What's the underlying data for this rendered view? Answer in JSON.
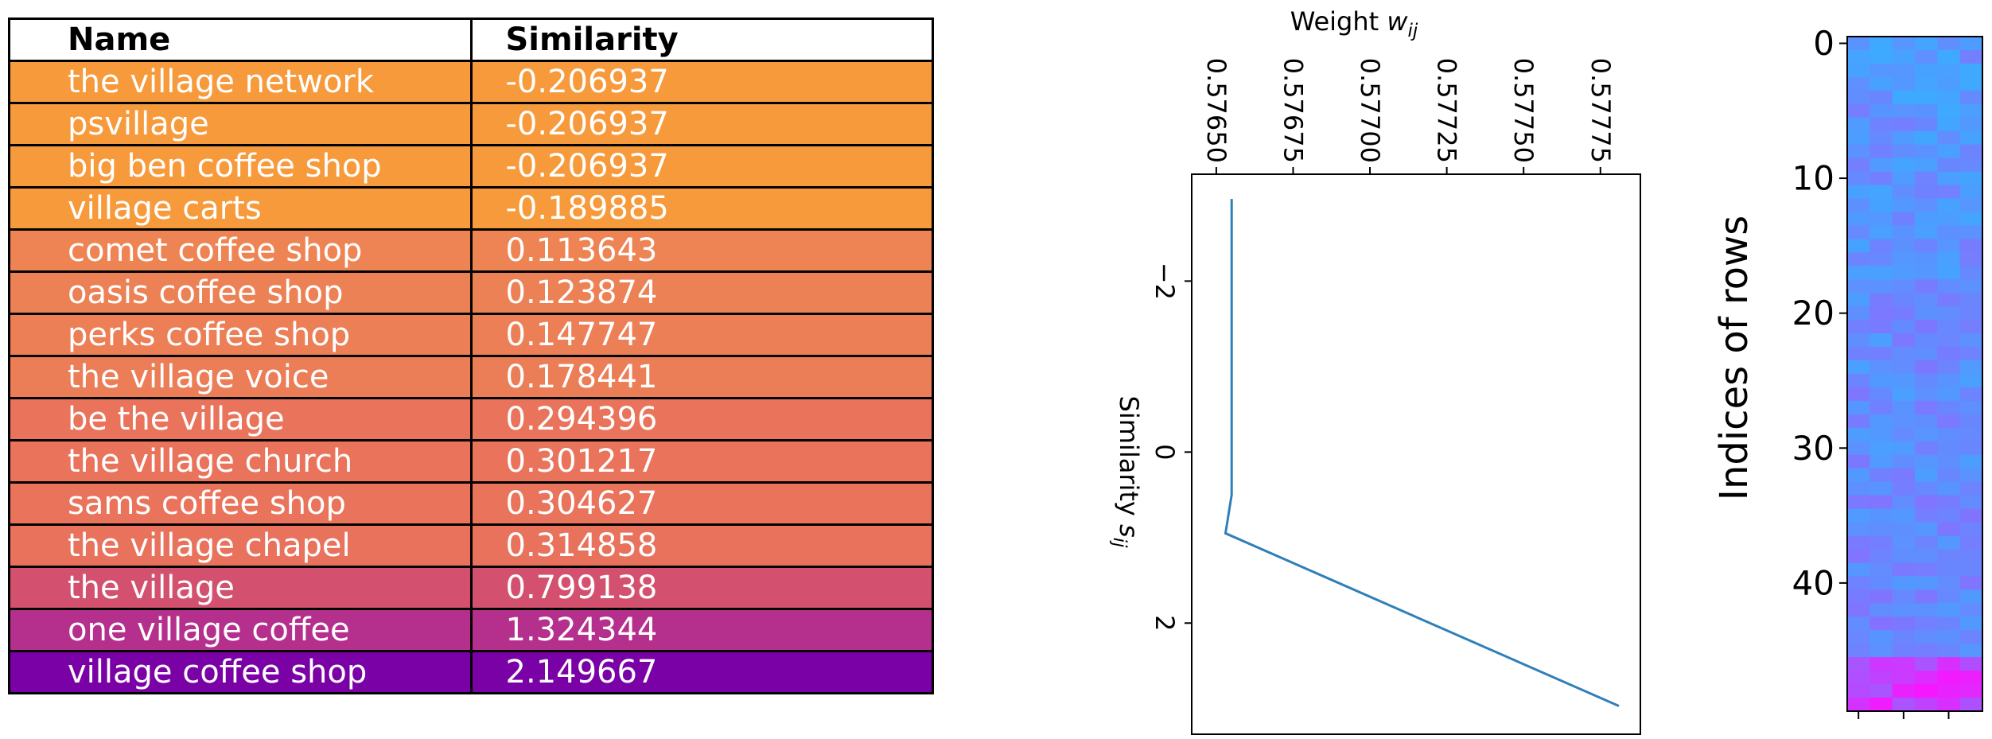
{
  "table": {
    "headers": [
      "Name",
      "Similarity"
    ],
    "rows": [
      {
        "name": "the village network",
        "similarity": "-0.206937",
        "color": "#f79a3b"
      },
      {
        "name": "psvillage",
        "similarity": "-0.206937",
        "color": "#f79a3b"
      },
      {
        "name": "big ben coffee shop",
        "similarity": "-0.206937",
        "color": "#f79a3b"
      },
      {
        "name": "village carts",
        "similarity": "-0.189885",
        "color": "#f79a3b"
      },
      {
        "name": "comet coffee shop",
        "similarity": "0.113643",
        "color": "#ee8454"
      },
      {
        "name": "oasis coffee shop",
        "similarity": "0.123874",
        "color": "#ec8155"
      },
      {
        "name": "perks coffee shop",
        "similarity": "0.147747",
        "color": "#ec7f56"
      },
      {
        "name": "the village voice",
        "similarity": "0.178441",
        "color": "#eb7d57"
      },
      {
        "name": "be the village",
        "similarity": "0.294396",
        "color": "#e9745b"
      },
      {
        "name": "the village church",
        "similarity": "0.301217",
        "color": "#e9735b"
      },
      {
        "name": "sams coffee shop",
        "similarity": "0.304627",
        "color": "#e9735b"
      },
      {
        "name": "the village chapel",
        "similarity": "0.314858",
        "color": "#e8725c"
      },
      {
        "name": "the village",
        "similarity": "0.799138",
        "color": "#d3516f"
      },
      {
        "name": "one village coffee",
        "similarity": "1.324344",
        "color": "#b52f8d"
      },
      {
        "name": "village coffee shop",
        "similarity": "2.149667",
        "color": "#7a01a6"
      }
    ]
  },
  "chart_data": [
    {
      "type": "line",
      "xlabel": "Weight w_ij",
      "ylabel": "Similarity s_ij",
      "xlim": [
        0.57642,
        0.57788
      ],
      "ylim": [
        -3.25,
        3.3
      ],
      "x_ticks": [
        "0.57650",
        "0.57675",
        "0.57700",
        "0.57725",
        "0.57750",
        "0.57775"
      ],
      "y_ticks": [
        "−2",
        "0",
        "2"
      ],
      "series": [
        {
          "color": "#2f7fb8",
          "points": [
            {
              "x": 0.57655,
              "y": -2.96
            },
            {
              "x": 0.57655,
              "y": 0.5
            },
            {
              "x": 0.57653,
              "y": 0.95
            },
            {
              "x": 0.57781,
              "y": 2.97
            }
          ]
        }
      ]
    },
    {
      "type": "heatmap",
      "ylabel": "Indices of rows",
      "y_ticks": [
        "0",
        "10",
        "20",
        "30",
        "40"
      ],
      "rows": 50,
      "cols": 6,
      "colormap": "cool",
      "base_color": "#3fa8ff",
      "hot_color": "#ff10ff"
    }
  ]
}
